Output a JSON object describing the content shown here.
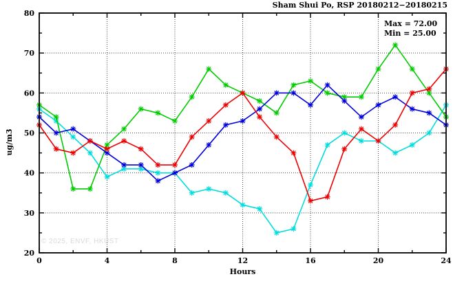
{
  "chart_data": {
    "type": "line",
    "title": "Sham Shui Po, RSP 20180212−20180215",
    "xlabel": "Hours",
    "ylabel": "ug/m3",
    "xlim": [
      0,
      24
    ],
    "ylim": [
      20,
      80
    ],
    "x_major_ticks": [
      0,
      4,
      8,
      12,
      16,
      20,
      24
    ],
    "x_minor_ticks": [
      2,
      6,
      10,
      14,
      18,
      22
    ],
    "y_major_ticks": [
      20,
      30,
      40,
      50,
      60,
      70,
      80
    ],
    "y_minor_ticks": [
      25,
      35,
      45,
      55,
      65,
      75
    ],
    "grid": "dotted-at-major-ticks",
    "legend": "none",
    "annotation": {
      "max_line": "Max = 72.00",
      "min_line": "Min = 25.00"
    },
    "watermark": "© 2025, ENVF, HKUST",
    "x": [
      0,
      1,
      2,
      3,
      4,
      5,
      6,
      7,
      8,
      9,
      10,
      11,
      12,
      13,
      14,
      15,
      16,
      17,
      18,
      19,
      20,
      21,
      22,
      23,
      24
    ],
    "series": [
      {
        "name": "cyan",
        "color": "#00dddd",
        "values": [
          56,
          53,
          49,
          45,
          39,
          41,
          41,
          40,
          40,
          35,
          36,
          35,
          32,
          31,
          25,
          26,
          37,
          47,
          50,
          48,
          48,
          45,
          47,
          50,
          57
        ]
      },
      {
        "name": "green",
        "color": "#00cc00",
        "values": [
          57,
          54,
          36,
          36,
          47,
          51,
          56,
          55,
          53,
          59,
          66,
          62,
          60,
          58,
          55,
          62,
          63,
          60,
          59,
          59,
          66,
          72,
          66,
          60,
          54
        ]
      },
      {
        "name": "blue",
        "color": "#0000dd",
        "values": [
          54,
          50,
          51,
          48,
          45,
          42,
          42,
          38,
          40,
          42,
          47,
          52,
          53,
          56,
          60,
          60,
          57,
          62,
          58,
          54,
          57,
          59,
          56,
          55,
          52
        ]
      },
      {
        "name": "red",
        "color": "#ee0000",
        "values": [
          52,
          46,
          45,
          48,
          46,
          48,
          46,
          42,
          42,
          49,
          53,
          57,
          60,
          54,
          49,
          45,
          33,
          34,
          46,
          51,
          48,
          52,
          60,
          61,
          66
        ]
      }
    ]
  }
}
